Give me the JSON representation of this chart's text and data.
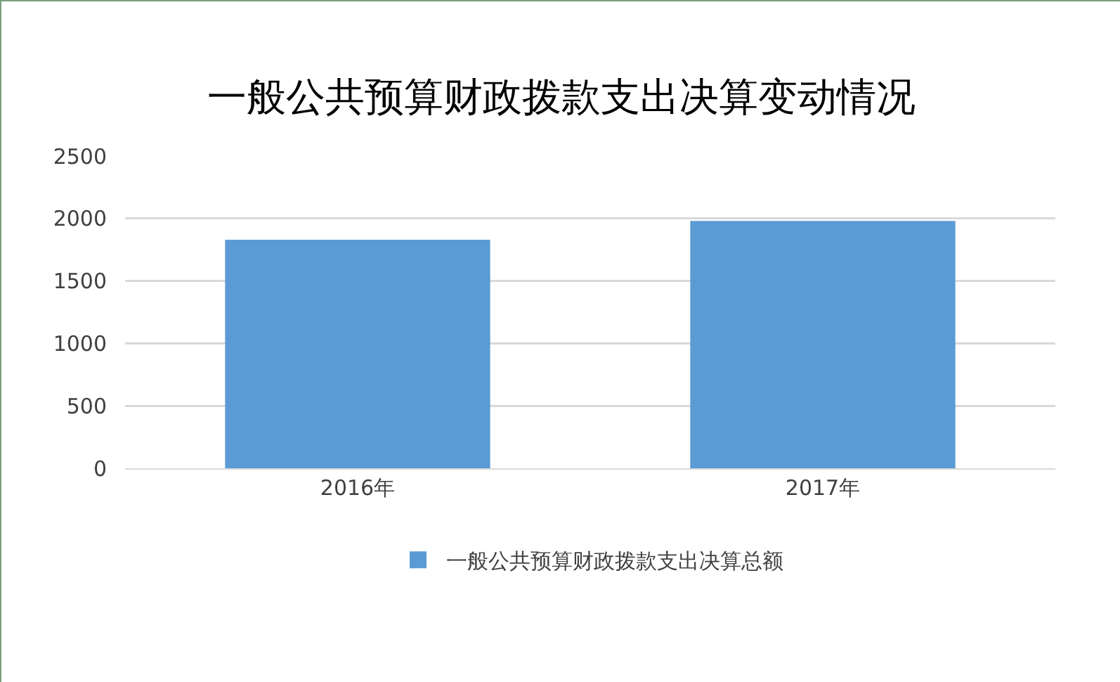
{
  "chart_data": {
    "type": "bar",
    "title": "一般公共预算财政拨款支出决算变动情况",
    "categories": [
      "2016年",
      "2017年"
    ],
    "series": [
      {
        "name": "一般公共预算财政拨款支出决算总额",
        "color": "#5b9bd5",
        "values": [
          1830,
          1980
        ]
      }
    ],
    "ylim": [
      0,
      2500
    ],
    "yticks": [
      0,
      500,
      1000,
      1500,
      2000,
      2500
    ],
    "grid": "y",
    "legend": "bottom"
  }
}
